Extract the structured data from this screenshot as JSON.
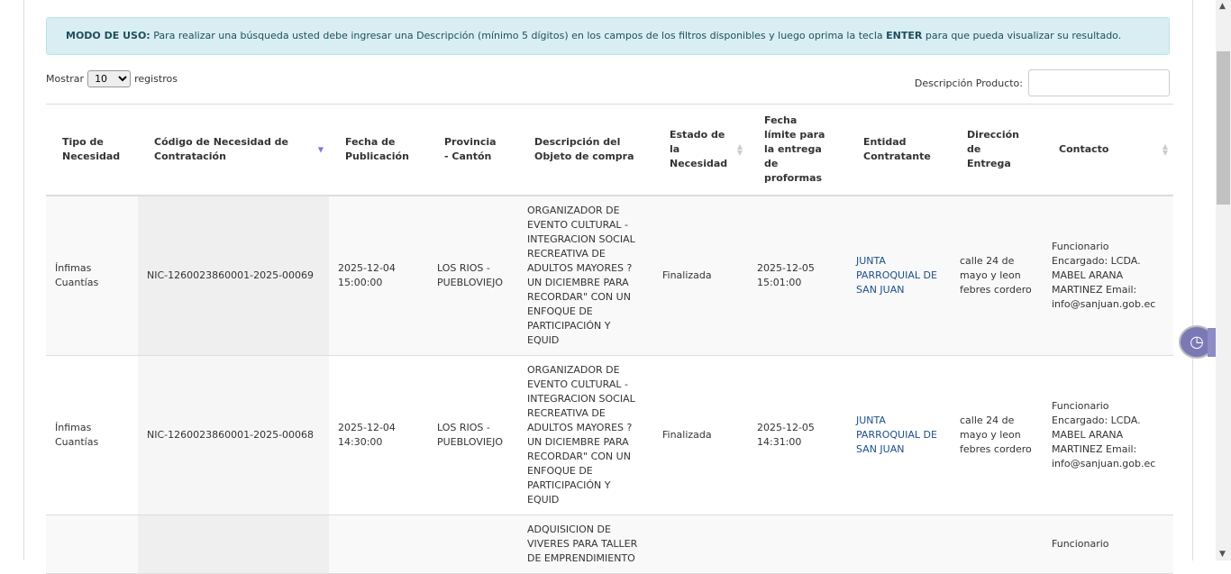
{
  "alert": {
    "label": "MODO DE USO:",
    "text1": " Para realizar una búsqueda usted debe ingresar una Descripción (mínimo 5 dígitos) en los campos de los filtros disponibles y luego oprima la tecla ",
    "key": "ENTER",
    "text2": " para que pueda visualizar su resultado."
  },
  "length": {
    "prefix": "Mostrar",
    "value": "10",
    "suffix": "registros"
  },
  "filter": {
    "label": "Descripción Producto:",
    "value": ""
  },
  "columns": [
    "Tipo de Necesidad",
    "Código de Necesidad de Contratación",
    "Fecha de Publicación",
    "Provincia - Cantón",
    "Descripción del Objeto de compra",
    "Estado de la Necesidad",
    "Fecha límite para la entrega de proformas",
    "Entidad Contratante",
    "Dirección de Entrega",
    "Contacto"
  ],
  "rows": [
    {
      "tipo": "Ínfimas Cuantías",
      "codigo": "NIC-1260023860001-2025-00069",
      "fecha": "2025-12-04 15:00:00",
      "provincia": "LOS RIOS - PUEBLOVIEJO",
      "descripcion": "ORGANIZADOR DE EVENTO CULTURAL - INTEGRACION SOCIAL RECREATIVA DE ADULTOS MAYORES ? UN DICIEMBRE PARA RECORDAR\" CON UN ENFOQUE DE PARTICIPACIÓN Y EQUID",
      "estado": "Finalizada",
      "limite": "2025-12-05 15:01:00",
      "entidad": "JUNTA PARROQUIAL DE SAN JUAN",
      "direccion": "calle 24 de mayo y leon febres cordero",
      "contacto": "Funcionario Encargado: LCDA. MABEL ARANA MARTINEZ Email: info@sanjuan.gob.ec"
    },
    {
      "tipo": "Ínfimas Cuantías",
      "codigo": "NIC-1260023860001-2025-00068",
      "fecha": "2025-12-04 14:30:00",
      "provincia": "LOS RIOS - PUEBLOVIEJO",
      "descripcion": "ORGANIZADOR DE EVENTO CULTURAL - INTEGRACION SOCIAL RECREATIVA DE ADULTOS MAYORES ? UN DICIEMBRE PARA RECORDAR\" CON UN ENFOQUE DE PARTICIPACIÓN Y EQUID",
      "estado": "Finalizada",
      "limite": "2025-12-05 14:31:00",
      "entidad": "JUNTA PARROQUIAL DE SAN JUAN",
      "direccion": "calle 24 de mayo y leon febres cordero",
      "contacto": "Funcionario Encargado: LCDA. MABEL ARANA MARTINEZ Email: info@sanjuan.gob.ec"
    },
    {
      "tipo": "",
      "codigo": "",
      "fecha": "",
      "provincia": "",
      "descripcion": "ADQUISICION DE VIVERES PARA TALLER DE EMPRENDIMIENTO",
      "estado": "",
      "limite": "",
      "entidad": "",
      "direccion": "",
      "contacto": "Funcionario"
    }
  ]
}
